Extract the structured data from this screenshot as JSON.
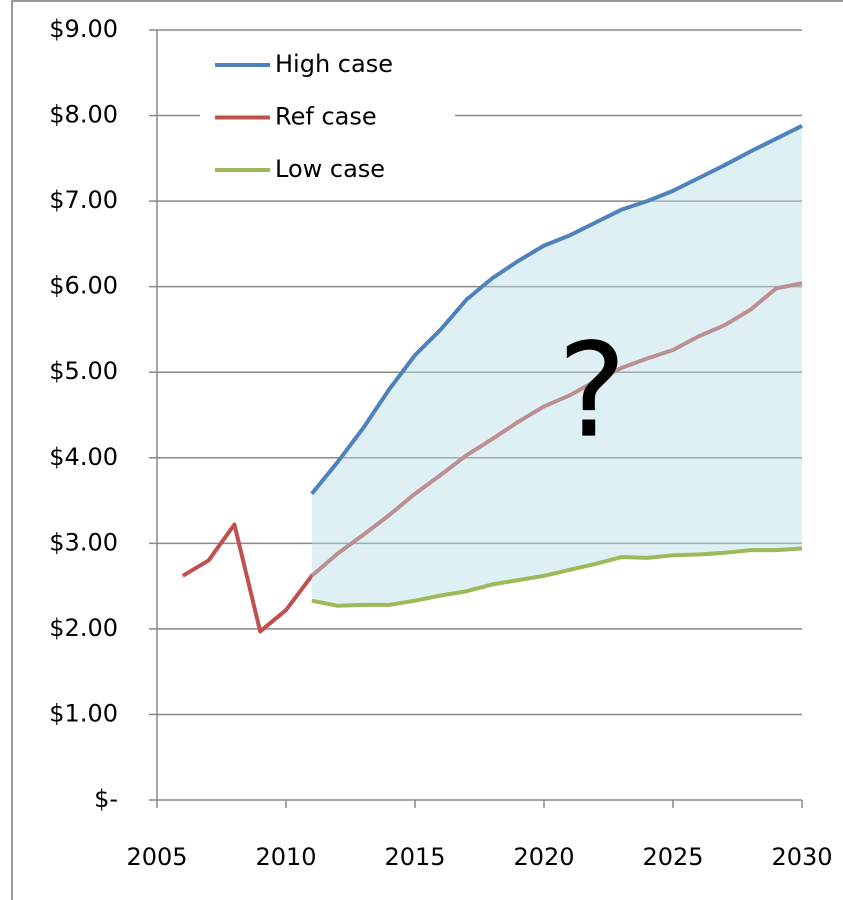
{
  "chart_data": {
    "type": "line",
    "annotation": "?",
    "series": [
      {
        "name": "High case",
        "color": "#4f81bd",
        "x": [
          2011,
          2012,
          2013,
          2014,
          2015,
          2016,
          2017,
          2018,
          2019,
          2020,
          2021,
          2022,
          2023,
          2024,
          2025,
          2026,
          2027,
          2028,
          2029,
          2030
        ],
        "values": [
          3.58,
          3.95,
          4.35,
          4.8,
          5.2,
          5.5,
          5.85,
          6.1,
          6.3,
          6.48,
          6.6,
          6.75,
          6.9,
          7.0,
          7.12,
          7.27,
          7.42,
          7.58,
          7.73,
          7.88
        ]
      },
      {
        "name": "Ref case",
        "color": "#c0504d",
        "x": [
          2006,
          2007,
          2008,
          2009,
          2010,
          2011,
          2012,
          2013,
          2014,
          2015,
          2016,
          2017,
          2018,
          2019,
          2020,
          2021,
          2022,
          2023,
          2024,
          2025,
          2026,
          2027,
          2028,
          2029,
          2030
        ],
        "values": [
          2.62,
          2.8,
          3.22,
          1.97,
          2.22,
          2.62,
          2.88,
          3.1,
          3.33,
          3.58,
          3.8,
          4.03,
          4.22,
          4.42,
          4.6,
          4.73,
          4.9,
          5.05,
          5.16,
          5.26,
          5.42,
          5.55,
          5.73,
          5.98,
          6.04
        ]
      },
      {
        "name": "Low case",
        "color": "#9bbb59",
        "x": [
          2011,
          2012,
          2013,
          2014,
          2015,
          2016,
          2017,
          2018,
          2019,
          2020,
          2021,
          2022,
          2023,
          2024,
          2025,
          2026,
          2027,
          2028,
          2029,
          2030
        ],
        "values": [
          2.33,
          2.27,
          2.28,
          2.28,
          2.33,
          2.39,
          2.44,
          2.52,
          2.57,
          2.62,
          2.69,
          2.76,
          2.84,
          2.83,
          2.86,
          2.87,
          2.89,
          2.92,
          2.92,
          2.94
        ]
      }
    ],
    "band_color": "#b7dde8",
    "xlim": [
      2005,
      2030
    ],
    "xticks": [
      2005,
      2010,
      2015,
      2020,
      2025,
      2030
    ],
    "ylim": [
      0,
      9
    ],
    "yticks": [
      {
        "value": 0,
        "label": "$-"
      },
      {
        "value": 1,
        "label": "$1.00"
      },
      {
        "value": 2,
        "label": "$2.00"
      },
      {
        "value": 3,
        "label": "$3.00"
      },
      {
        "value": 4,
        "label": "$4.00"
      },
      {
        "value": 5,
        "label": "$5.00"
      },
      {
        "value": 6,
        "label": "$6.00"
      },
      {
        "value": 7,
        "label": "$7.00"
      },
      {
        "value": 8,
        "label": "$8.00"
      },
      {
        "value": 9,
        "label": "$9.00"
      }
    ],
    "grid": true
  }
}
